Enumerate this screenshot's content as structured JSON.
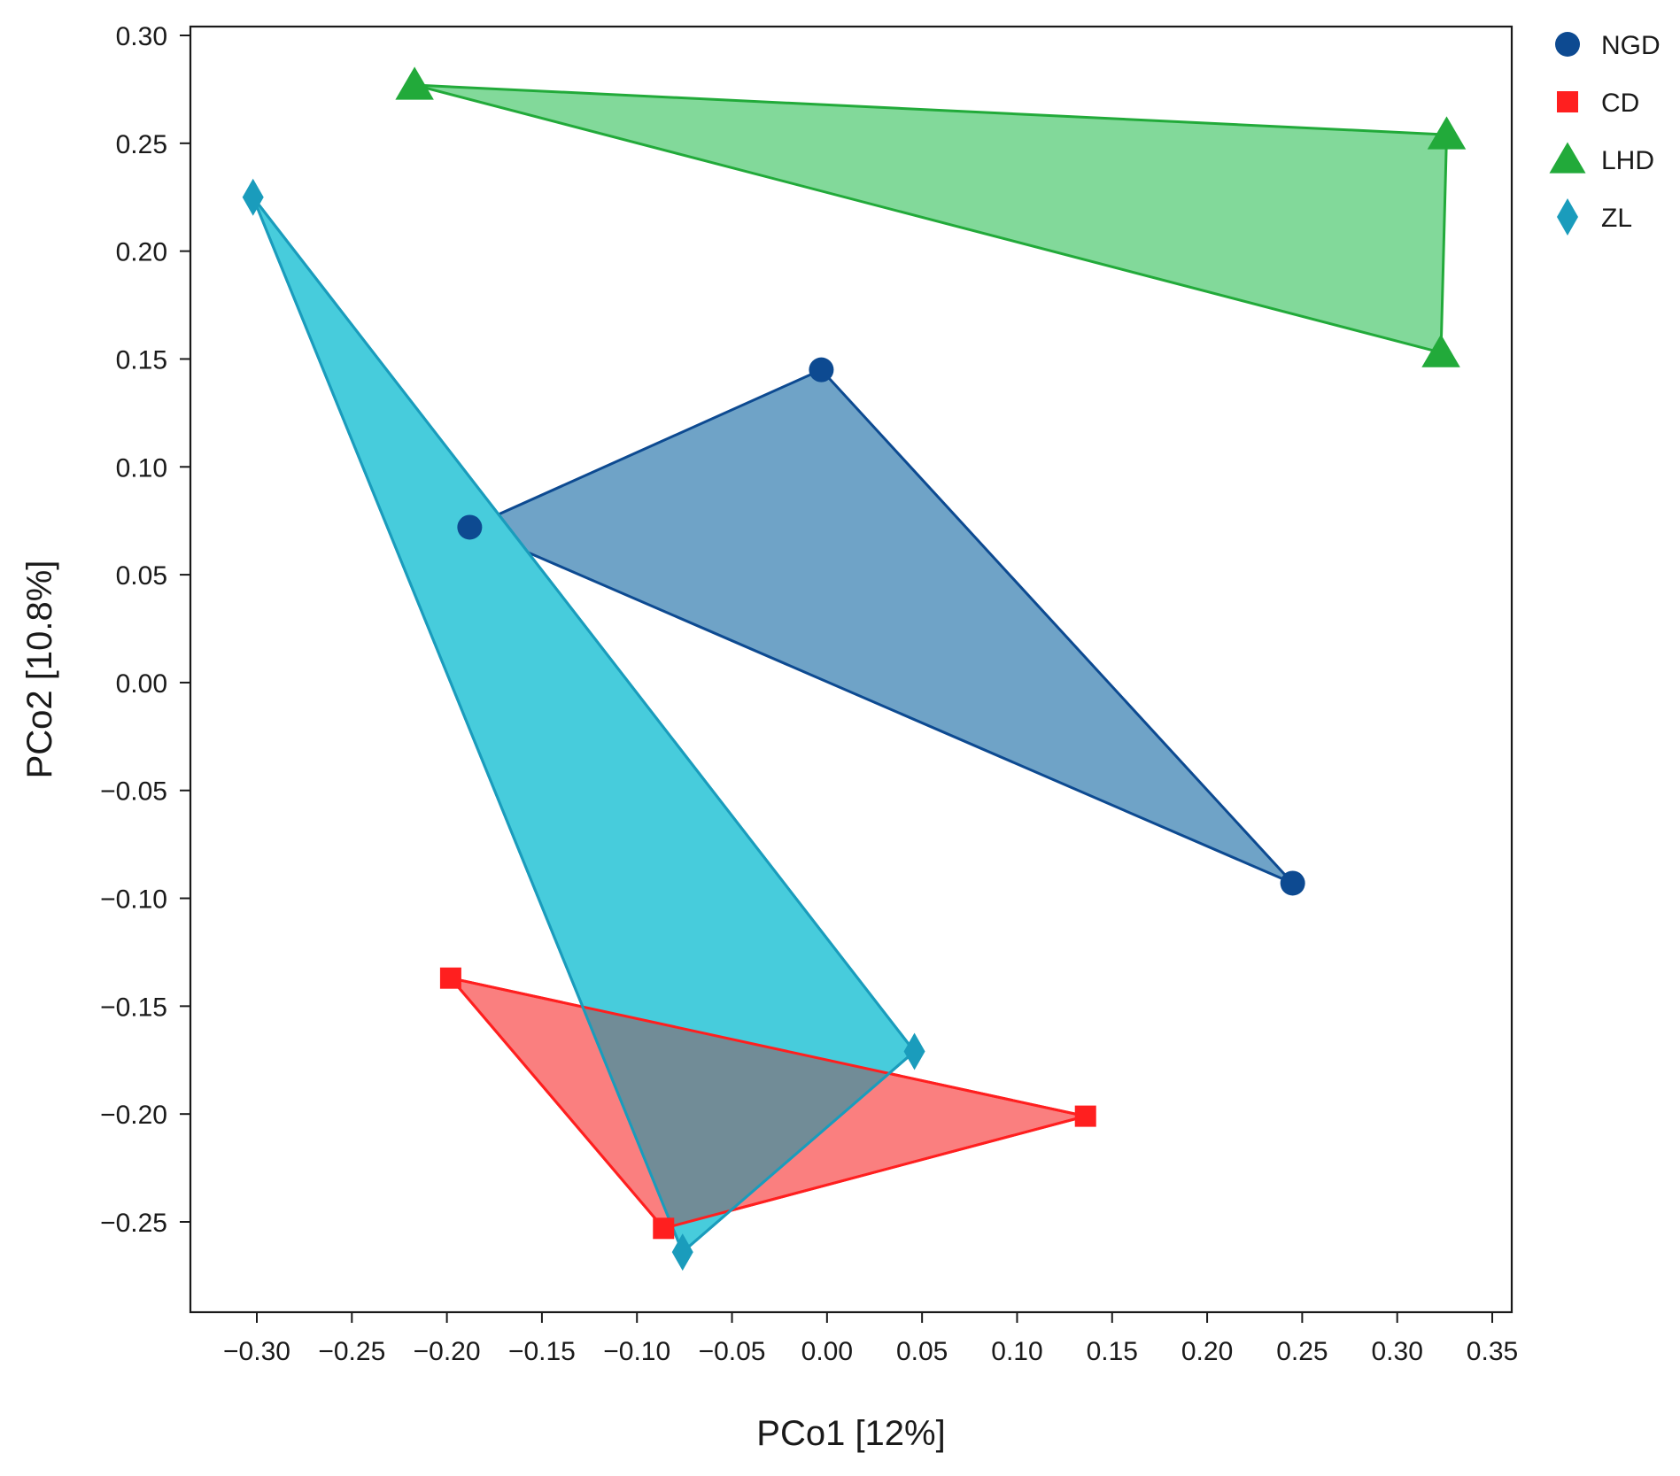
{
  "chart_data": {
    "type": "scatter",
    "xlabel": "PCo1 [12%]",
    "ylabel": "PCo2 [10.8%]",
    "xlim": [
      -0.33,
      0.36
    ],
    "ylim": [
      -0.295,
      0.305
    ],
    "x_ticks": [
      -0.3,
      -0.25,
      -0.2,
      -0.15,
      -0.1,
      -0.05,
      0.0,
      0.05,
      0.1,
      0.15,
      0.2,
      0.25,
      0.3,
      0.35
    ],
    "x_tick_labels": [
      "−0.30",
      "−0.25",
      "−0.20",
      "−0.15",
      "−0.10",
      "−0.05",
      "0.00",
      "0.05",
      "0.10",
      "0.15",
      "0.20",
      "0.25",
      "0.30",
      "0.35"
    ],
    "y_ticks": [
      0.3,
      0.25,
      0.2,
      0.15,
      0.1,
      0.05,
      0.0,
      -0.05,
      -0.1,
      -0.15,
      -0.2,
      -0.25
    ],
    "y_tick_labels": [
      "0.30",
      "0.25",
      "0.20",
      "0.15",
      "0.10",
      "0.05",
      "0.00",
      "−0.05",
      "−0.10",
      "−0.15",
      "−0.20",
      "−0.25"
    ],
    "grid": false,
    "legend_position": "right, outside top",
    "series": [
      {
        "name": "NGD",
        "marker": "circle",
        "color": "#0d4a91",
        "fill": "#6fa3c7",
        "points": [
          {
            "x": -0.003,
            "y": 0.145
          },
          {
            "x": -0.188,
            "y": 0.072
          },
          {
            "x": 0.245,
            "y": -0.093
          }
        ]
      },
      {
        "name": "CD",
        "marker": "square",
        "color": "#ff1f1f",
        "fill": "#fa7f7f",
        "points": [
          {
            "x": -0.198,
            "y": -0.137
          },
          {
            "x": 0.136,
            "y": -0.201
          },
          {
            "x": -0.086,
            "y": -0.253
          }
        ]
      },
      {
        "name": "LHD",
        "marker": "triangle",
        "color": "#22aa3a",
        "fill": "#82d99a",
        "points": [
          {
            "x": -0.217,
            "y": 0.277
          },
          {
            "x": 0.326,
            "y": 0.254
          },
          {
            "x": 0.323,
            "y": 0.153
          }
        ]
      },
      {
        "name": "ZL",
        "marker": "diamond",
        "color": "#1a9cbc",
        "fill": "#47ccdc",
        "points": [
          {
            "x": -0.302,
            "y": 0.225
          },
          {
            "x": 0.046,
            "y": -0.171
          },
          {
            "x": -0.076,
            "y": -0.264
          }
        ]
      }
    ],
    "overlap_fill": "#718c97"
  }
}
